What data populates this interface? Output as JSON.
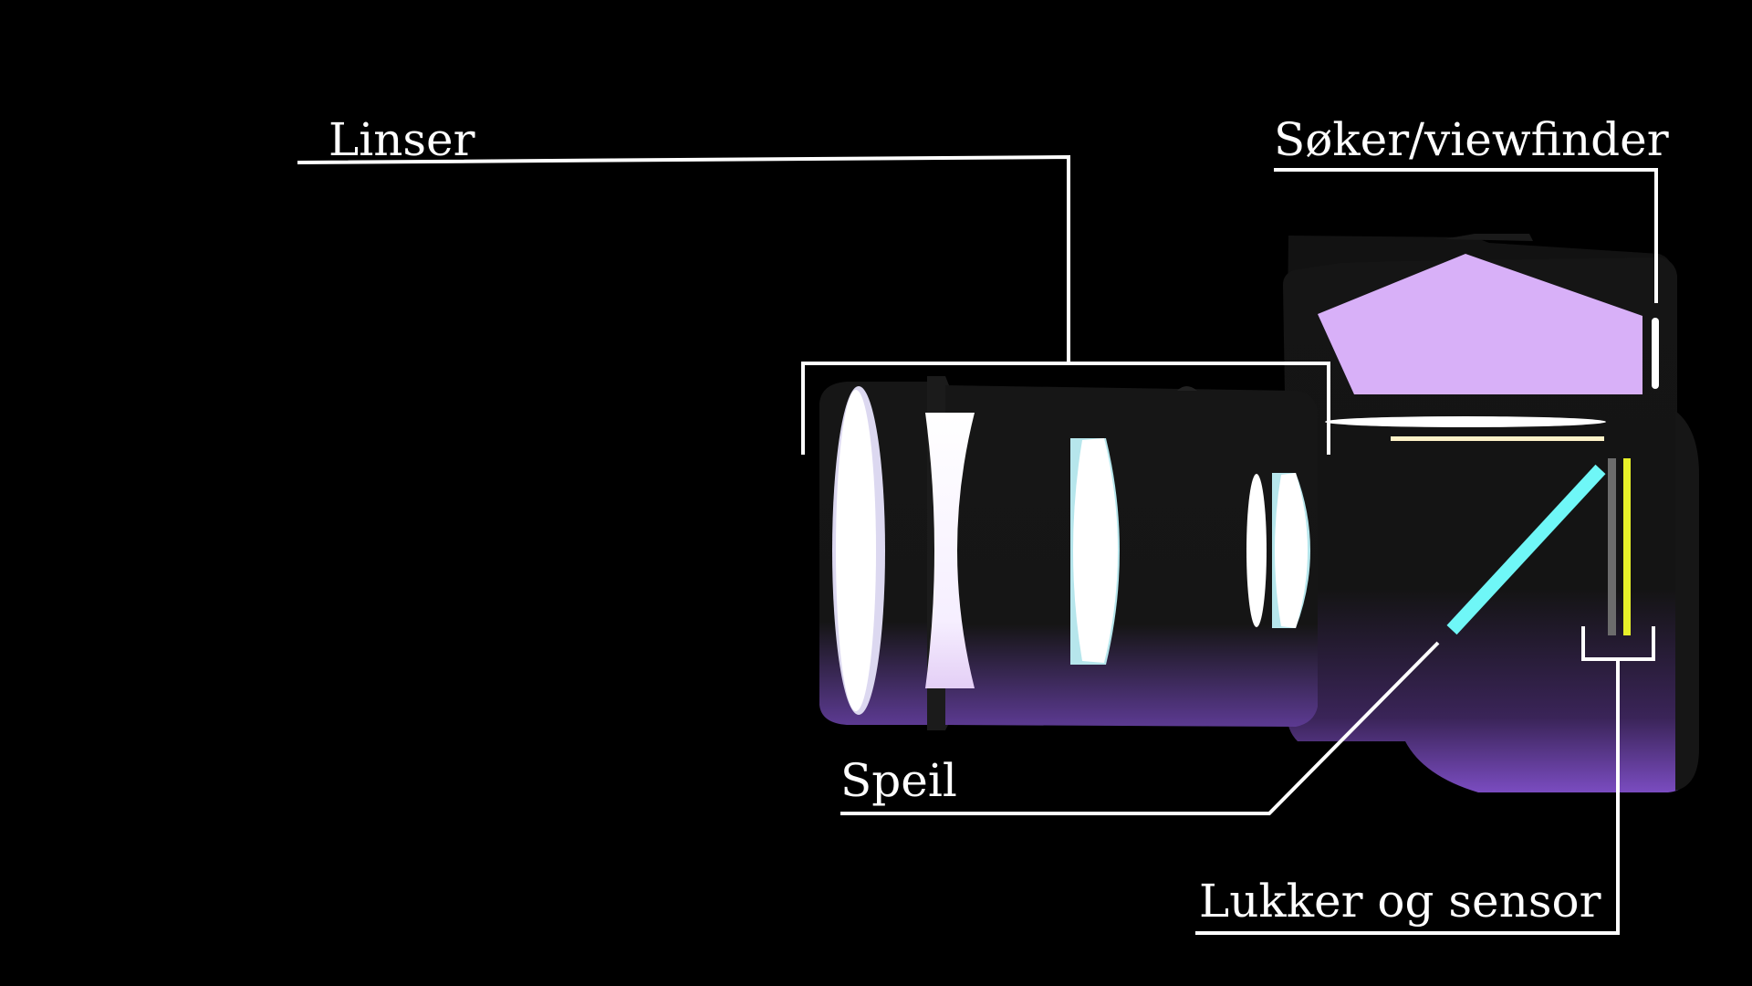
{
  "labels": {
    "lenses": "Linser",
    "viewfinder": "Søker/viewfinder",
    "mirror": "Speil",
    "shutter_sensor": "Lukker og sensor"
  },
  "colors": {
    "background": "#000000",
    "body": "#111111",
    "body_glow": "#7a4cc0",
    "prism": "#d8b0f8",
    "mirror": "#6ff7f7",
    "lens_accent": "#b6e6ec",
    "shutter": "#6c6c6c",
    "sensor": "#e6f029",
    "focus_screen": "#fff3c8",
    "line": "#ffffff"
  }
}
